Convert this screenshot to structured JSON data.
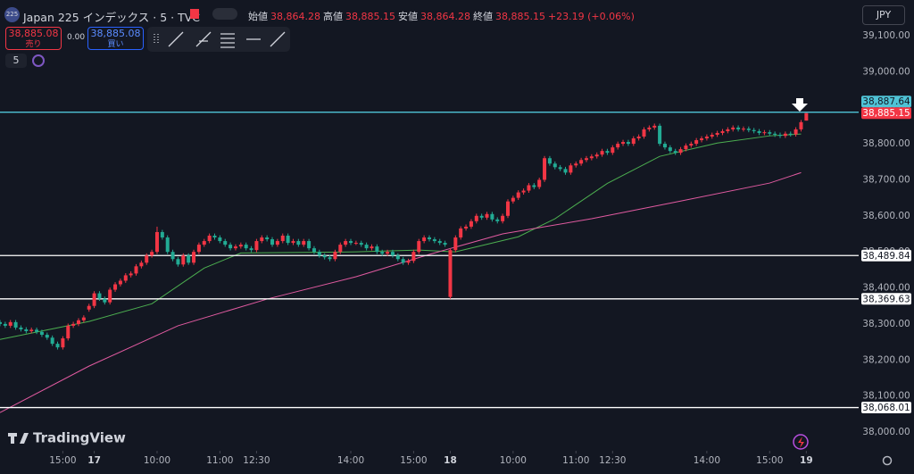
{
  "header": {
    "badge": "225",
    "symbol": "Japan 225 インデックス · 5 · TVC",
    "fields": [
      {
        "label": "始値",
        "value": "38,864.28"
      },
      {
        "label": "高値",
        "value": "38,885.15"
      },
      {
        "label": "安値",
        "value": "38,864.28"
      },
      {
        "label": "終値",
        "value": "38,885.15"
      }
    ],
    "change": "+23.19 (+0.06%)"
  },
  "trade": {
    "sell_price": "38,885.08",
    "sell_label": "売り",
    "spread": "0.00",
    "buy_price": "38,885.08",
    "buy_label": "買い"
  },
  "interval": "5",
  "currency": "JPY",
  "brand": "TradingView",
  "chart_data": {
    "type": "candlestick",
    "up_color": "#f23645",
    "down_color": "#22ab94",
    "grid": false,
    "xlim": [
      0,
      164
    ],
    "ylim": [
      37948,
      39199
    ],
    "xticks": [
      {
        "value": 12,
        "label": "15:00"
      },
      {
        "value": 18,
        "label": "17"
      },
      {
        "value": 30,
        "label": "10:00"
      },
      {
        "value": 42,
        "label": "11:00"
      },
      {
        "value": 49,
        "label": "12:30"
      },
      {
        "value": 67,
        "label": "14:00"
      },
      {
        "value": 79,
        "label": "15:00"
      },
      {
        "value": 86,
        "label": "18"
      },
      {
        "value": 98,
        "label": "10:00"
      },
      {
        "value": 110,
        "label": "11:00"
      },
      {
        "value": 117,
        "label": "12:30"
      },
      {
        "value": 135,
        "label": "14:00"
      },
      {
        "value": 147,
        "label": "15:00"
      },
      {
        "value": 154,
        "label": "19"
      }
    ],
    "yticks": [
      {
        "value": 38000,
        "label": "38,000.00"
      },
      {
        "value": 38100,
        "label": "38,100.00"
      },
      {
        "value": 38200,
        "label": "38,200.00"
      },
      {
        "value": 38300,
        "label": "38,300.00"
      },
      {
        "value": 38400,
        "label": "38,400.00"
      },
      {
        "value": 38500,
        "label": "38,500.00"
      },
      {
        "value": 38600,
        "label": "38,600.00"
      },
      {
        "value": 38700,
        "label": "38,700.00"
      },
      {
        "value": 38800,
        "label": "38,800.00"
      },
      {
        "value": 38900,
        "label": "38,900.00"
      },
      {
        "value": 39000,
        "label": "39,000.00"
      },
      {
        "value": 39100,
        "label": "39,100.00"
      }
    ],
    "x": [
      0,
      1,
      2,
      3,
      4,
      5,
      6,
      7,
      8,
      9,
      10,
      11,
      12,
      13,
      14,
      15,
      16,
      17,
      18,
      19,
      20,
      21,
      22,
      23,
      24,
      25,
      26,
      27,
      28,
      29,
      30,
      31,
      32,
      33,
      34,
      35,
      36,
      37,
      38,
      39,
      40,
      41,
      42,
      43,
      44,
      45,
      46,
      47,
      48,
      49,
      50,
      51,
      52,
      53,
      54,
      55,
      56,
      57,
      58,
      59,
      60,
      61,
      62,
      63,
      64,
      65,
      66,
      67,
      68,
      69,
      70,
      71,
      72,
      73,
      74,
      75,
      76,
      77,
      78,
      79,
      80,
      81,
      82,
      83,
      84,
      85,
      86,
      87,
      88,
      89,
      90,
      91,
      92,
      93,
      94,
      95,
      96,
      97,
      98,
      99,
      100,
      101,
      102,
      103,
      104,
      105,
      106,
      107,
      108,
      109,
      110,
      111,
      112,
      113,
      114,
      115,
      116,
      117,
      118,
      119,
      120,
      121,
      122,
      123,
      124,
      125,
      126,
      127,
      128,
      129,
      130,
      131,
      132,
      133,
      134,
      135,
      136,
      137,
      138,
      139,
      140,
      141,
      142,
      143,
      144,
      145,
      146,
      147,
      148,
      149,
      150,
      151,
      152,
      153,
      154
    ],
    "open": [
      38305,
      38300,
      38295,
      38305,
      38290,
      38285,
      38280,
      38284,
      38278,
      38270,
      38262,
      38245,
      38235,
      38260,
      38295,
      38300,
      38310,
      38340,
      38350,
      38385,
      38370,
      38360,
      38395,
      38410,
      38420,
      38435,
      38440,
      38460,
      38470,
      38490,
      38500,
      38555,
      38540,
      38500,
      38480,
      38465,
      38490,
      38470,
      38500,
      38520,
      38530,
      38545,
      38540,
      38530,
      38520,
      38510,
      38515,
      38520,
      38510,
      38505,
      38530,
      38540,
      38535,
      38520,
      38530,
      38545,
      38525,
      38530,
      38520,
      38530,
      38510,
      38500,
      38490,
      38485,
      38480,
      38500,
      38520,
      38530,
      38525,
      38525,
      38520,
      38510,
      38515,
      38500,
      38495,
      38500,
      38490,
      38480,
      38470,
      38475,
      38500,
      38530,
      38540,
      38535,
      38530,
      38525,
      38375,
      38505,
      38540,
      38565,
      38570,
      38585,
      38600,
      38595,
      38605,
      38590,
      38585,
      38600,
      38640,
      38650,
      38665,
      38670,
      38685,
      38680,
      38700,
      38760,
      38745,
      38735,
      38730,
      38720,
      38740,
      38745,
      38755,
      38760,
      38765,
      38770,
      38780,
      38775,
      38790,
      38800,
      38805,
      38800,
      38815,
      38820,
      38840,
      38845,
      38850,
      38800,
      38790,
      38780,
      38775,
      38785,
      38795,
      38800,
      38810,
      38815,
      38820,
      38825,
      38830,
      38835,
      38840,
      38845,
      38840,
      38842,
      38838,
      38835,
      38830,
      38832,
      38828,
      38825,
      38822,
      38828,
      38826,
      38840,
      38864.28
    ],
    "high": [
      38311,
      38306,
      38311,
      38311,
      38296,
      38291,
      38290,
      38290,
      38284,
      38276,
      38268,
      38251,
      38266,
      38301,
      38306,
      38316,
      38324,
      38356,
      38391,
      38391,
      38376,
      38401,
      38416,
      38426,
      38441,
      38446,
      38466,
      38476,
      38496,
      38506,
      38570,
      38561,
      38546,
      38506,
      38486,
      38496,
      38496,
      38506,
      38526,
      38536,
      38551,
      38551,
      38546,
      38536,
      38526,
      38521,
      38526,
      38526,
      38516,
      38536,
      38546,
      38546,
      38541,
      38536,
      38551,
      38551,
      38536,
      38536,
      38536,
      38536,
      38516,
      38506,
      38496,
      38491,
      38506,
      38526,
      38536,
      38536,
      38531,
      38531,
      38526,
      38521,
      38521,
      38506,
      38506,
      38506,
      38496,
      38486,
      38481,
      38506,
      38536,
      38546,
      38546,
      38541,
      38536,
      38531,
      38510,
      38546,
      38571,
      38576,
      38591,
      38606,
      38606,
      38611,
      38611,
      38596,
      38606,
      38646,
      38656,
      38671,
      38676,
      38691,
      38691,
      38706,
      38766,
      38766,
      38751,
      38741,
      38736,
      38746,
      38751,
      38761,
      38766,
      38771,
      38776,
      38786,
      38786,
      38796,
      38806,
      38811,
      38811,
      38821,
      38826,
      38846,
      38851,
      38856,
      38856,
      38806,
      38796,
      38786,
      38791,
      38801,
      38806,
      38816,
      38821,
      38826,
      38831,
      38836,
      38841,
      38846,
      38851,
      38851,
      38848,
      38848,
      38844,
      38841,
      38838,
      38838,
      38834,
      38831,
      38834,
      38834,
      38846,
      38866,
      38885.15
    ],
    "low": [
      38294,
      38289,
      38289,
      38284,
      38279,
      38274,
      38274,
      38272,
      38264,
      38256,
      38239,
      38229,
      38229,
      38254,
      38289,
      38294,
      38304,
      38334,
      38344,
      38364,
      38354,
      38354,
      38389,
      38404,
      38414,
      38429,
      38434,
      38454,
      38464,
      38484,
      38494,
      38534,
      38494,
      38474,
      38459,
      38459,
      38464,
      38464,
      38494,
      38514,
      38524,
      38534,
      38524,
      38514,
      38504,
      38504,
      38509,
      38504,
      38499,
      38499,
      38524,
      38529,
      38514,
      38514,
      38524,
      38519,
      38519,
      38514,
      38514,
      38504,
      38494,
      38484,
      38479,
      38474,
      38474,
      38494,
      38514,
      38519,
      38519,
      38514,
      38504,
      38504,
      38494,
      38489,
      38489,
      38484,
      38474,
      38464,
      38464,
      38469,
      38494,
      38524,
      38529,
      38524,
      38519,
      38514,
      38369.63,
      38499,
      38534,
      38559,
      38564,
      38579,
      38589,
      38589,
      38584,
      38579,
      38579,
      38594,
      38634,
      38644,
      38659,
      38664,
      38674,
      38674,
      38694,
      38739,
      38729,
      38724,
      38714,
      38714,
      38734,
      38739,
      38749,
      38754,
      38759,
      38764,
      38769,
      38769,
      38784,
      38794,
      38794,
      38794,
      38809,
      38814,
      38834,
      38839,
      38794,
      38784,
      38774,
      38769,
      38769,
      38779,
      38789,
      38794,
      38804,
      38809,
      38814,
      38819,
      38824,
      38829,
      38834,
      38834,
      38834,
      38832,
      38829,
      38824,
      38824,
      38822,
      38819,
      38816,
      38816,
      38820,
      38820,
      38834,
      38864.28
    ],
    "close": [
      38300,
      38295,
      38305,
      38290,
      38285,
      38280,
      38284,
      38278,
      38270,
      38262,
      38245,
      38235,
      38260,
      38295,
      38300,
      38310,
      38318,
      38350,
      38385,
      38370,
      38360,
      38395,
      38410,
      38420,
      38435,
      38440,
      38460,
      38470,
      38490,
      38500,
      38555,
      38540,
      38500,
      38480,
      38465,
      38490,
      38470,
      38500,
      38520,
      38530,
      38545,
      38540,
      38530,
      38520,
      38510,
      38515,
      38520,
      38510,
      38505,
      38530,
      38540,
      38535,
      38520,
      38530,
      38545,
      38525,
      38530,
      38520,
      38530,
      38510,
      38500,
      38490,
      38485,
      38480,
      38500,
      38520,
      38530,
      38525,
      38525,
      38520,
      38510,
      38515,
      38500,
      38495,
      38500,
      38490,
      38480,
      38470,
      38475,
      38500,
      38530,
      38540,
      38535,
      38530,
      38525,
      38520,
      38505,
      38540,
      38565,
      38570,
      38585,
      38600,
      38595,
      38605,
      38590,
      38585,
      38600,
      38640,
      38650,
      38665,
      38670,
      38685,
      38680,
      38700,
      38760,
      38745,
      38735,
      38730,
      38720,
      38740,
      38745,
      38755,
      38760,
      38765,
      38770,
      38780,
      38775,
      38790,
      38800,
      38805,
      38800,
      38815,
      38820,
      38840,
      38845,
      38850,
      38800,
      38790,
      38780,
      38775,
      38785,
      38795,
      38800,
      38810,
      38815,
      38820,
      38825,
      38830,
      38835,
      38840,
      38845,
      38840,
      38842,
      38838,
      38835,
      38830,
      38832,
      38828,
      38825,
      38822,
      38828,
      38826,
      38840,
      38860,
      38885.15
    ],
    "moving_averages": [
      {
        "color": "#4caf50",
        "x": [
          0,
          17,
          29,
          39,
          46,
          68,
          80,
          87,
          99,
          106,
          116,
          126,
          137,
          147,
          153
        ],
        "values": [
          38257,
          38307,
          38356,
          38455,
          38497,
          38500,
          38505,
          38500,
          38542,
          38592,
          38690,
          38765,
          38802,
          38822,
          38827
        ]
      },
      {
        "color": "#e05aa0",
        "x": [
          0,
          17,
          34,
          51,
          68,
          82,
          96,
          113,
          130,
          147,
          153
        ],
        "values": [
          38054,
          38183,
          38295,
          38369,
          38431,
          38493,
          38550,
          38592,
          38641,
          38691,
          38720
        ]
      }
    ],
    "lines": [
      {
        "value": 38887.64,
        "label": "38,887.64",
        "color": "#4fc3d6",
        "text_color": "#131722"
      },
      {
        "value": 38489.84,
        "label": "38,489.84",
        "color": "#ffffff",
        "text_color": "#131722"
      },
      {
        "value": 38369.63,
        "label": "38,369.63",
        "color": "#ffffff",
        "text_color": "#131722"
      },
      {
        "value": 38068.01,
        "label": "38,068.01",
        "color": "#ffffff",
        "text_color": "#131722"
      }
    ],
    "last_price": {
      "value": 38885.15,
      "label": "38,885.15",
      "color": "#f23645"
    }
  }
}
